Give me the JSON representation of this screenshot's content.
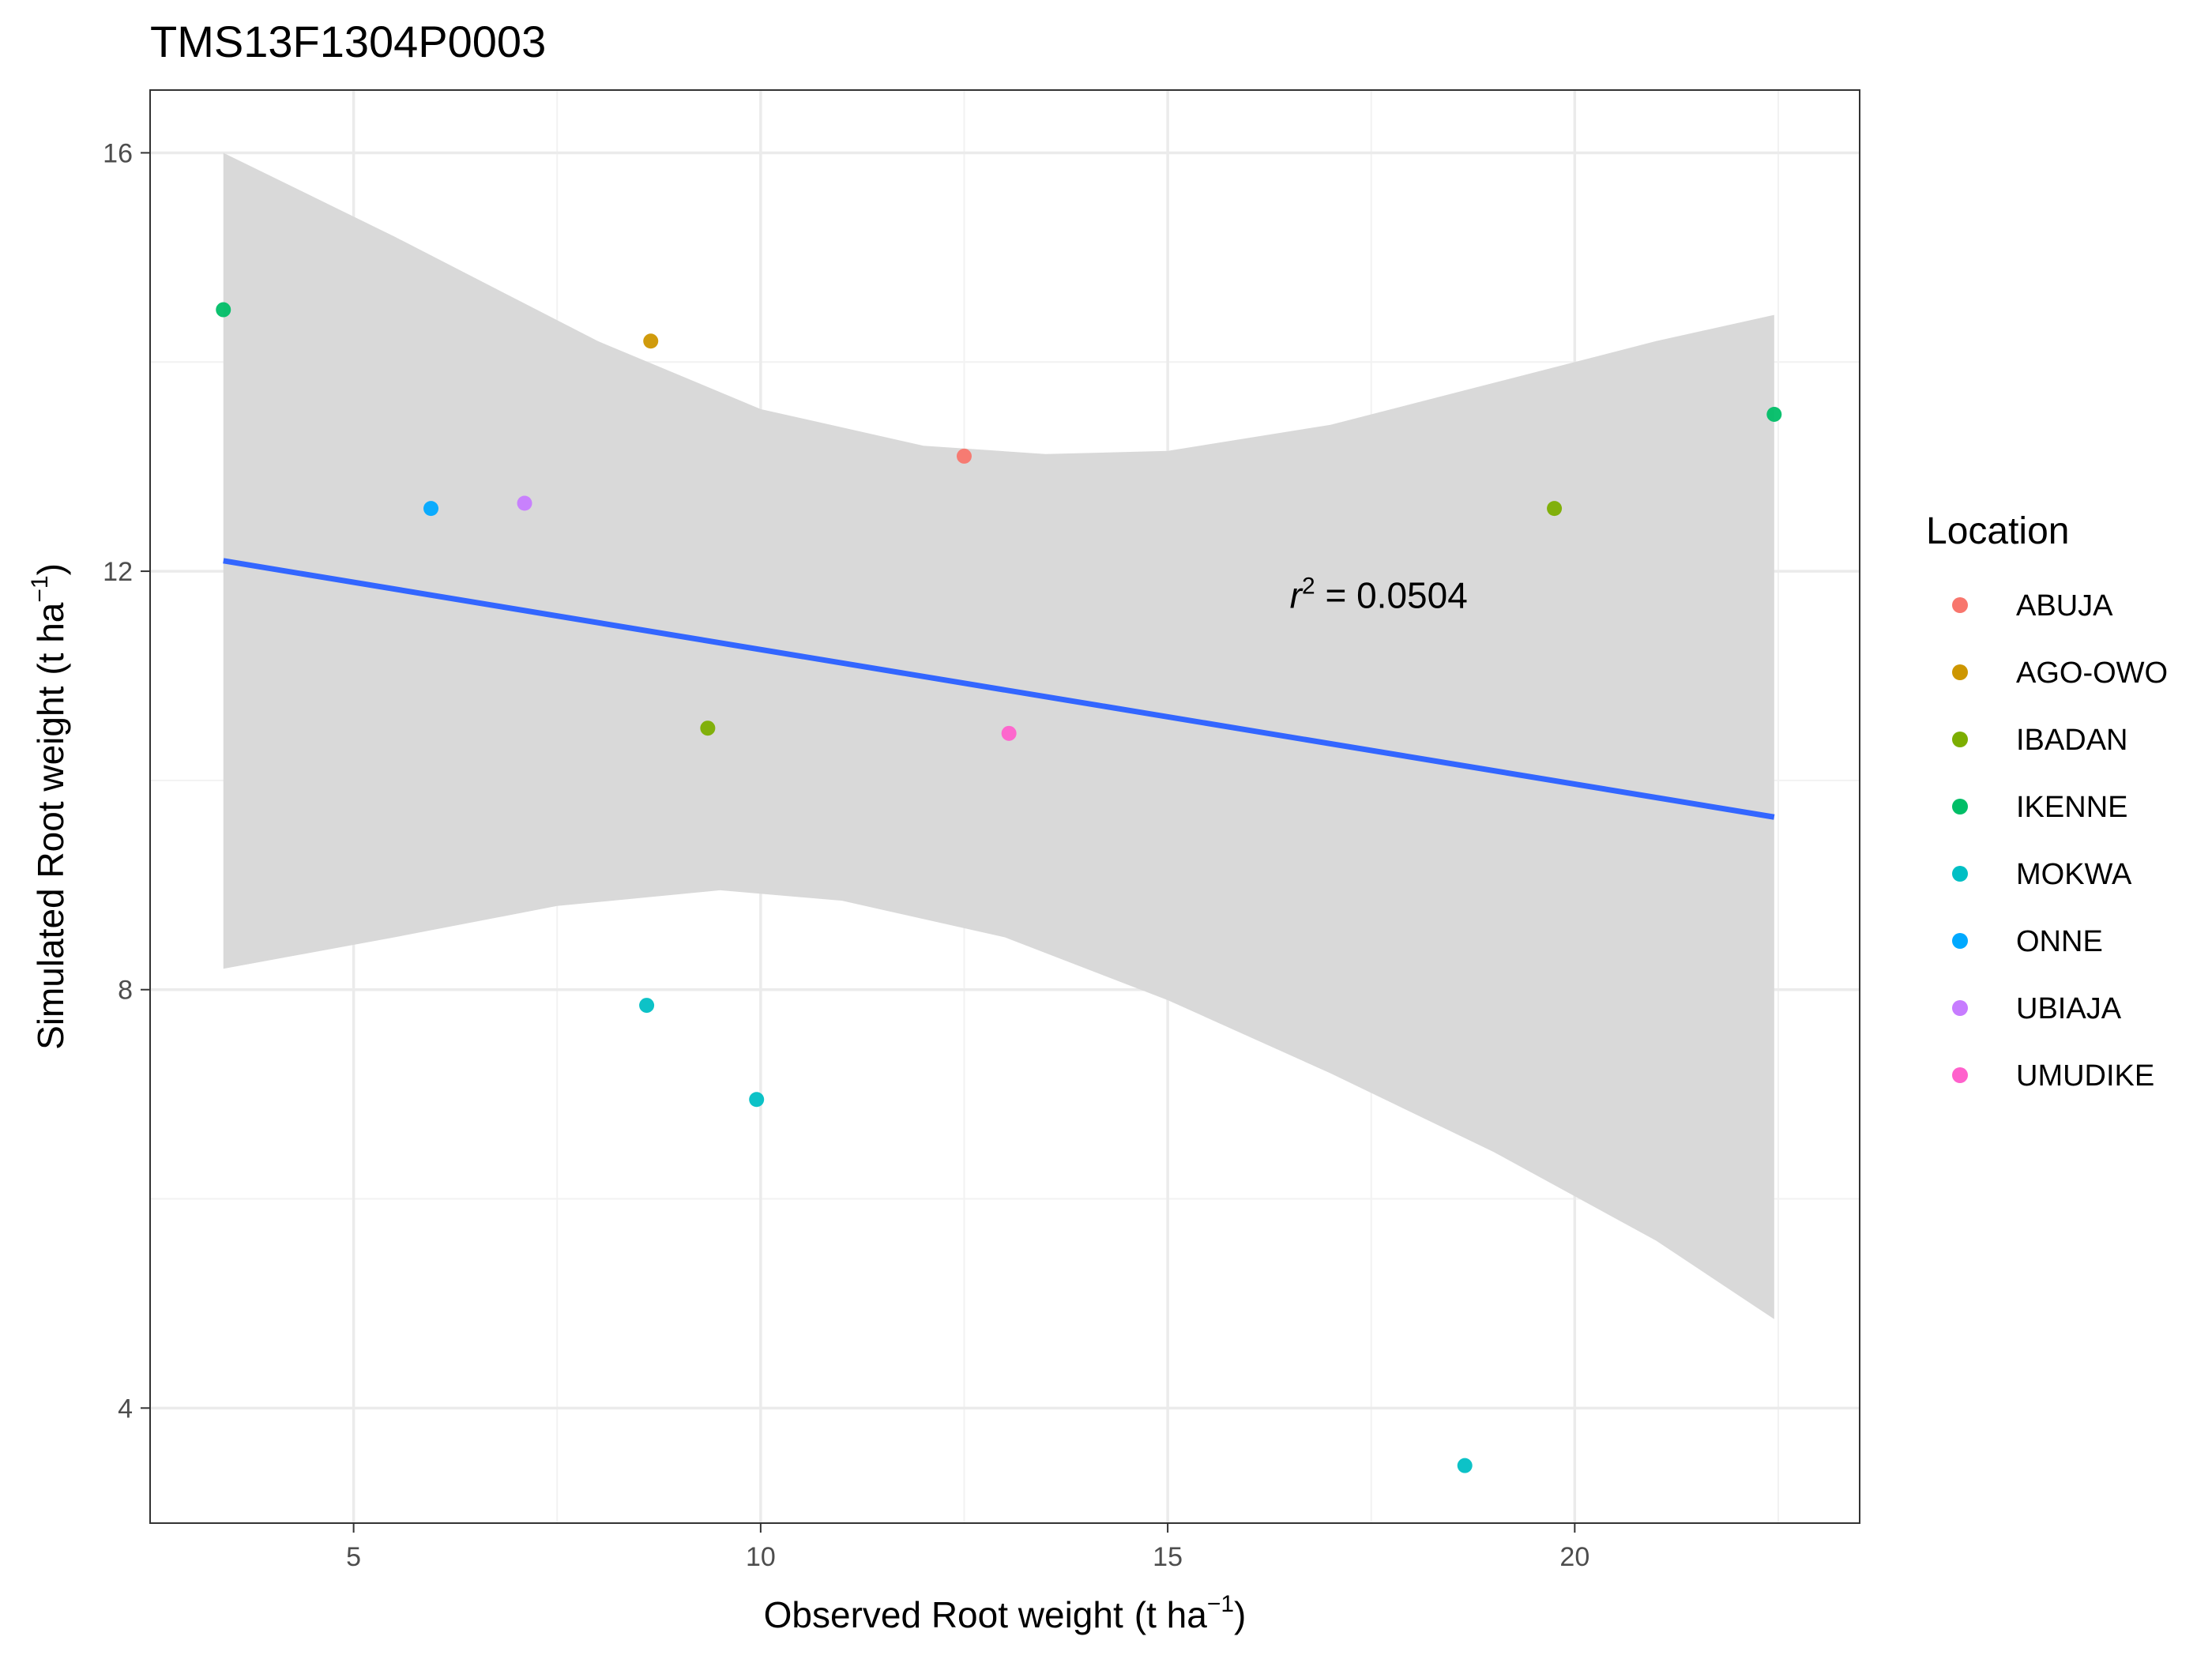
{
  "chart_data": {
    "type": "scatter",
    "title": "TMS13F1304P0003",
    "xlabel": {
      "main": "Observed Root weight",
      "unit_open": "(t ha",
      "unit_sup": "−1",
      "unit_close": ")"
    },
    "ylabel": {
      "main": "Simulated Root weight",
      "unit_open": "(t ha",
      "unit_sup": "−1",
      "unit_close": ")"
    },
    "xlim": [
      2.5,
      23.5
    ],
    "ylim": [
      2.9,
      16.6
    ],
    "x_ticks": [
      5,
      10,
      15,
      20
    ],
    "y_ticks": [
      4,
      8,
      12,
      16
    ],
    "x_ticks_labels": [
      "5",
      "10",
      "15",
      "20"
    ],
    "y_ticks_labels": [
      "4",
      "8",
      "12",
      "16"
    ],
    "grid": true,
    "legend": {
      "title": "Location",
      "position": "right"
    },
    "series": [
      {
        "name": "ABUJA",
        "color": "#F8766D",
        "points": [
          {
            "x": 12.5,
            "y": 13.1
          }
        ]
      },
      {
        "name": "AGO-OWO",
        "color": "#CD9600",
        "points": [
          {
            "x": 8.65,
            "y": 14.2
          }
        ]
      },
      {
        "name": "IBADAN",
        "color": "#7CAE00",
        "points": [
          {
            "x": 9.35,
            "y": 10.5
          },
          {
            "x": 19.75,
            "y": 12.6
          }
        ]
      },
      {
        "name": "IKENNE",
        "color": "#00BE67",
        "points": [
          {
            "x": 3.4,
            "y": 14.5
          },
          {
            "x": 22.45,
            "y": 13.5
          }
        ]
      },
      {
        "name": "MOKWA",
        "color": "#00BFC4",
        "points": [
          {
            "x": 8.6,
            "y": 7.85
          },
          {
            "x": 9.95,
            "y": 6.95
          },
          {
            "x": 18.65,
            "y": 3.45
          }
        ]
      },
      {
        "name": "ONNE",
        "color": "#00A9FF",
        "points": [
          {
            "x": 5.95,
            "y": 12.6
          }
        ]
      },
      {
        "name": "UBIAJA",
        "color": "#C77CFF",
        "points": [
          {
            "x": 7.1,
            "y": 12.65
          }
        ]
      },
      {
        "name": "UMUDIKE",
        "color": "#FF61CC",
        "points": [
          {
            "x": 13.05,
            "y": 10.45
          }
        ]
      }
    ],
    "regression": {
      "color": "#3366FF",
      "x_start": 3.4,
      "y_start": 12.1,
      "x_end": 22.45,
      "y_end": 9.65,
      "band_color": "#d9d9d9",
      "band_upper": [
        [
          3.4,
          16.0
        ],
        [
          5.5,
          15.2
        ],
        [
          8.0,
          14.2
        ],
        [
          10.0,
          13.55
        ],
        [
          12.0,
          13.2
        ],
        [
          13.5,
          13.12
        ],
        [
          15.0,
          13.15
        ],
        [
          17.0,
          13.4
        ],
        [
          19.0,
          13.8
        ],
        [
          21.0,
          14.2
        ],
        [
          22.45,
          14.45
        ]
      ],
      "band_lower": [
        [
          22.45,
          4.85
        ],
        [
          21.0,
          5.6
        ],
        [
          19.0,
          6.45
        ],
        [
          17.0,
          7.2
        ],
        [
          15.0,
          7.9
        ],
        [
          13.0,
          8.5
        ],
        [
          11.0,
          8.85
        ],
        [
          9.5,
          8.95
        ],
        [
          7.5,
          8.8
        ],
        [
          5.5,
          8.5
        ],
        [
          3.4,
          8.2
        ]
      ]
    },
    "annotation": {
      "prefix": "r",
      "sup": "2",
      "text": " = 0.0504",
      "x": 16.5,
      "y": 11.65
    }
  }
}
